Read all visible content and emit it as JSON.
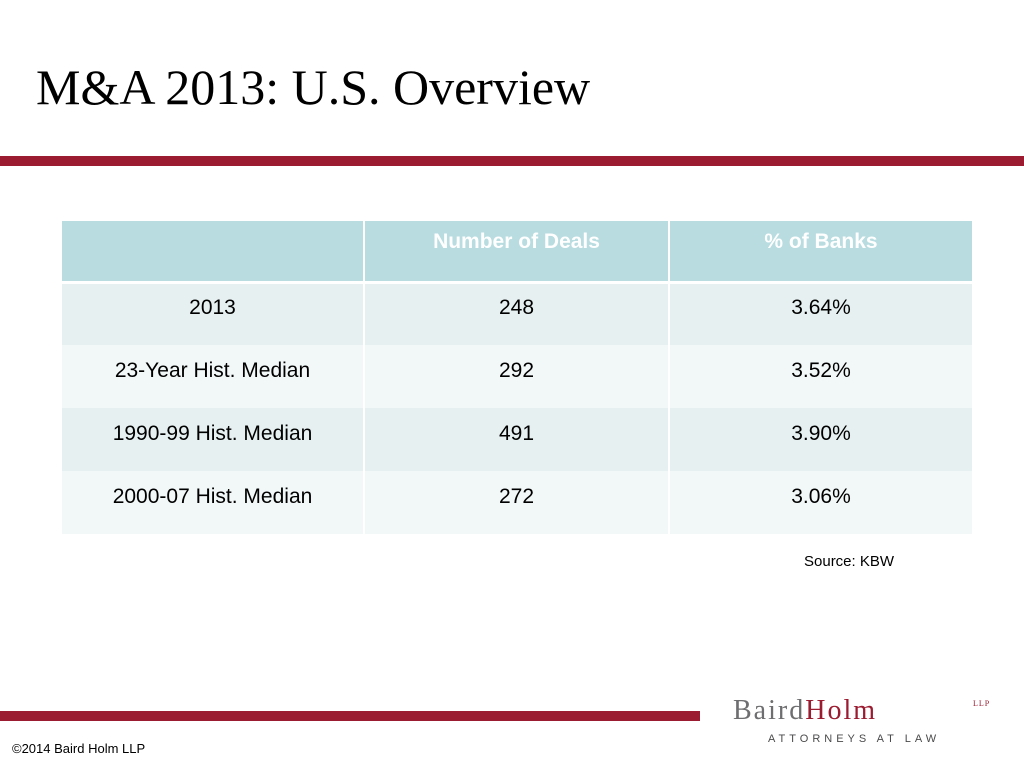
{
  "slide": {
    "title": "M&A 2013: U.S. Overview"
  },
  "colors": {
    "accent_rule": "#9b1b30",
    "table_header_bg": "#b8dce0",
    "table_row_odd_bg": "#e6f0f1",
    "table_row_even_bg": "#f2f7f8",
    "logo_baird": "#6e6e70",
    "logo_holm": "#9b1b30"
  },
  "table": {
    "headers": [
      "",
      "Number of Deals",
      "% of Banks"
    ],
    "rows": [
      [
        "2013",
        "248",
        "3.64%"
      ],
      [
        "23-Year Hist. Median",
        "292",
        "3.52%"
      ],
      [
        "1990-99 Hist. Median",
        "491",
        "3.90%"
      ],
      [
        "2000-07 Hist. Median",
        "272",
        "3.06%"
      ]
    ]
  },
  "source": "Source: KBW",
  "footer": {
    "copyright": "©2014 Baird Holm LLP"
  },
  "logo": {
    "name_part1": "Baird",
    "name_part2": "Holm",
    "suffix": "LLP",
    "tagline": "ATTORNEYS AT LAW"
  }
}
